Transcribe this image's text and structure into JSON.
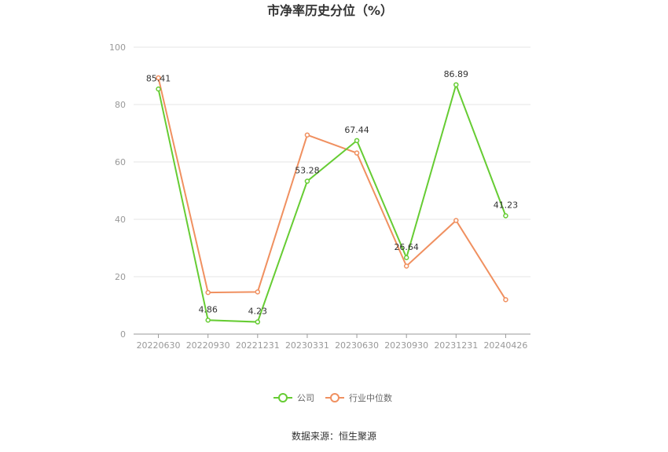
{
  "chart_data": {
    "type": "line",
    "title": "市净率历史分位（%）",
    "categories": [
      "20220630",
      "20220930",
      "20221231",
      "20230331",
      "20230630",
      "20230930",
      "20231231",
      "20240426"
    ],
    "yticks": [
      "0",
      "20",
      "40",
      "60",
      "80",
      "100"
    ],
    "ylim": [
      0,
      100
    ],
    "grid": true,
    "legend_position": "bottom-center",
    "series": [
      {
        "name": "公司",
        "color": "#66cc33",
        "values": [
          85.41,
          4.86,
          4.23,
          53.28,
          67.44,
          26.64,
          86.89,
          41.23
        ],
        "labels": [
          "85.41",
          "4.86",
          "4.23",
          "53.28",
          "67.44",
          "26.64",
          "86.89",
          "41.23"
        ]
      },
      {
        "name": "行业中位数",
        "color": "#f09060",
        "values": [
          89.3,
          14.5,
          14.7,
          69.4,
          63.1,
          23.7,
          39.6,
          12.0
        ]
      }
    ],
    "source": "数据来源：恒生聚源"
  }
}
